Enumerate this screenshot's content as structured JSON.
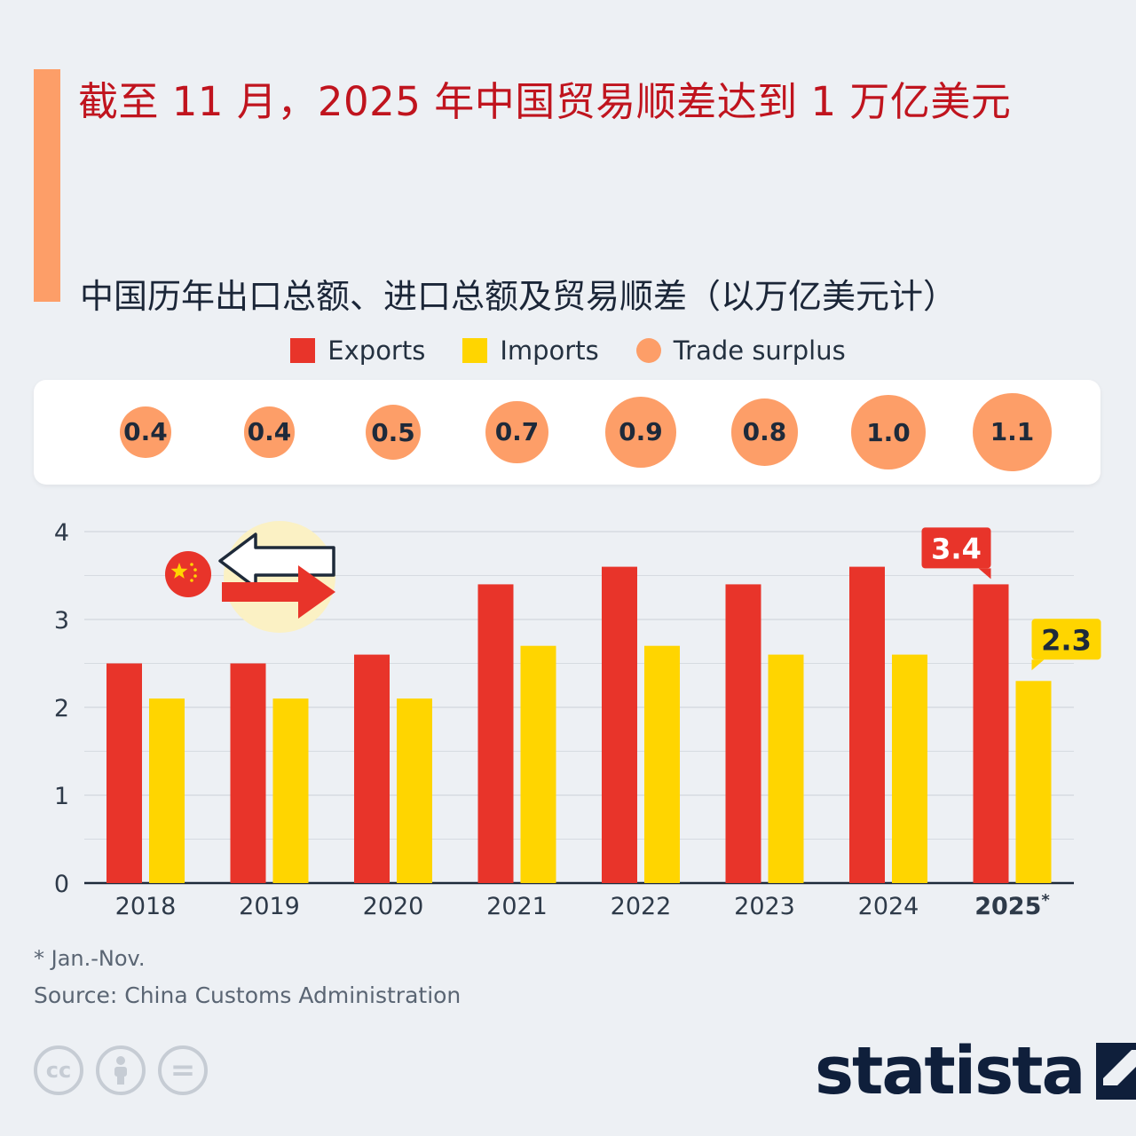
{
  "title": "截至 11 月，2025 年中国贸易顺差达到 1 万亿美元",
  "subtitle": "中国历年出口总额、进口总额及贸易顺差（以万亿美元计）",
  "legend": [
    {
      "label": "Exports",
      "color": "#e8342a",
      "shape": "square"
    },
    {
      "label": "Imports",
      "color": "#ffd500",
      "shape": "square"
    },
    {
      "label": "Trade surplus",
      "color": "#fd9e68",
      "shape": "circle"
    }
  ],
  "surplus": [
    {
      "year": "2018",
      "value": "0.4"
    },
    {
      "year": "2019",
      "value": "0.4"
    },
    {
      "year": "2020",
      "value": "0.5"
    },
    {
      "year": "2021",
      "value": "0.7"
    },
    {
      "year": "2022",
      "value": "0.9"
    },
    {
      "year": "2023",
      "value": "0.8"
    },
    {
      "year": "2024",
      "value": "1.0"
    },
    {
      "year": "2025",
      "value": "1.1"
    }
  ],
  "chart_data": {
    "type": "bar",
    "categories": [
      "2018",
      "2019",
      "2020",
      "2021",
      "2022",
      "2023",
      "2024",
      "2025*"
    ],
    "series": [
      {
        "name": "Exports",
        "color": "#e8342a",
        "values": [
          2.5,
          2.5,
          2.6,
          3.4,
          3.6,
          3.4,
          3.6,
          3.4
        ]
      },
      {
        "name": "Imports",
        "color": "#ffd500",
        "values": [
          2.1,
          2.1,
          2.1,
          2.7,
          2.7,
          2.6,
          2.6,
          2.3
        ]
      }
    ],
    "ylim": [
      0,
      4
    ],
    "yticks": [
      0,
      1,
      2,
      3,
      4
    ],
    "grid": true,
    "callouts": [
      {
        "series": "Exports",
        "index": 7,
        "label": "3.4"
      },
      {
        "series": "Imports",
        "index": 7,
        "label": "2.3"
      }
    ]
  },
  "footnote": "* Jan.-Nov.",
  "source": "Source: China Customs Administration",
  "license_icons": [
    "cc-icon",
    "attribution-icon",
    "no-derivatives-icon"
  ],
  "license_text": {
    "cc": "cc",
    "equals": "="
  },
  "brand": "statista",
  "icons": [
    "china-flag-icon",
    "trade-arrows-icon",
    "statista-logo-icon"
  ]
}
